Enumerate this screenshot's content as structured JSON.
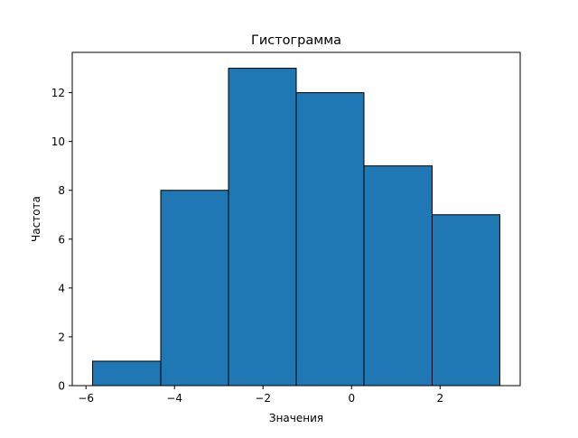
{
  "chart_data": {
    "type": "bar",
    "title": "Гистограмма",
    "xlabel": "Значения",
    "ylabel": "Частота",
    "bins": [
      {
        "x0": -5.85,
        "x1": -4.31,
        "count": 1
      },
      {
        "x0": -4.31,
        "x1": -2.78,
        "count": 8
      },
      {
        "x0": -2.78,
        "x1": -1.25,
        "count": 13
      },
      {
        "x0": -1.25,
        "x1": 0.28,
        "count": 12
      },
      {
        "x0": 0.28,
        "x1": 1.82,
        "count": 9
      },
      {
        "x0": 1.82,
        "x1": 3.35,
        "count": 7
      }
    ],
    "xlim": [
      -6.31,
      3.81
    ],
    "ylim": [
      0,
      13.65
    ],
    "xticks": [
      -6,
      -4,
      -2,
      0,
      2
    ],
    "xtick_labels": [
      "−6",
      "−4",
      "−2",
      "0",
      "2"
    ],
    "yticks": [
      0,
      2,
      4,
      6,
      8,
      10,
      12
    ],
    "ytick_labels": [
      "0",
      "2",
      "4",
      "6",
      "8",
      "10",
      "12"
    ],
    "bar_color": "#1f77b4",
    "edge_color": "#000000",
    "grid": false,
    "legend": "none"
  }
}
